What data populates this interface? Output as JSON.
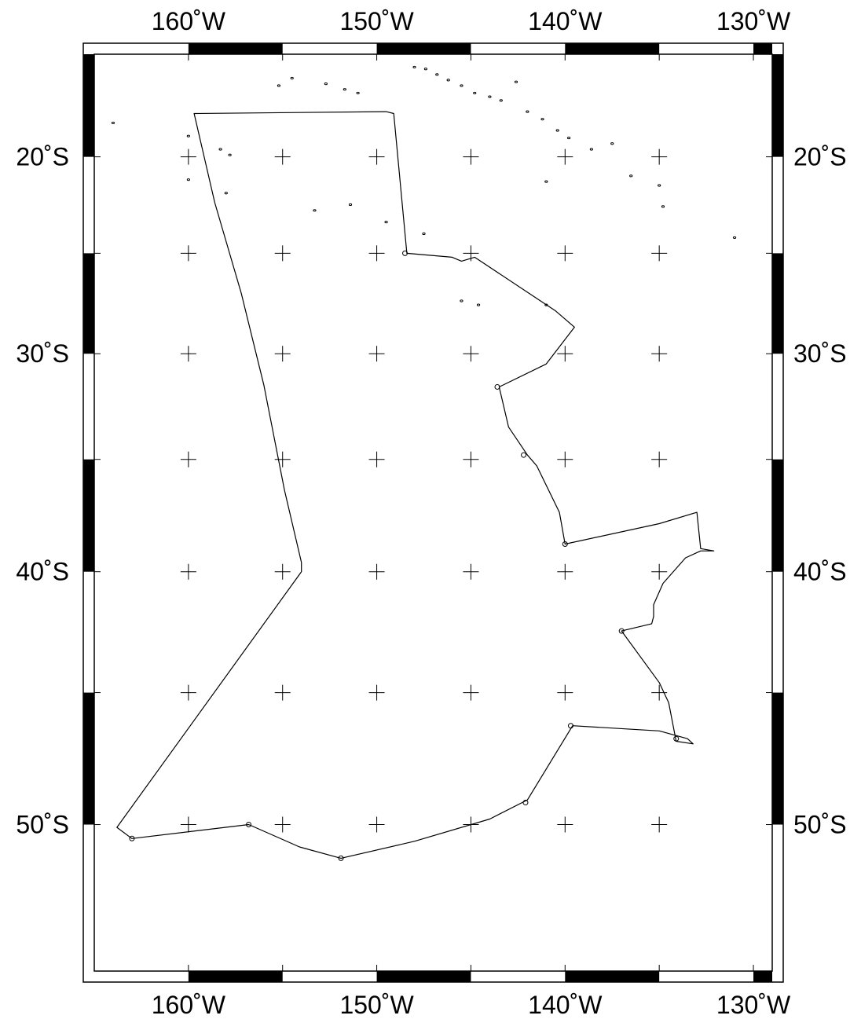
{
  "map": {
    "projection": "mercator",
    "lon_range": [
      -165,
      -129
    ],
    "lat_range": [
      -55,
      -14.5
    ],
    "gridline_style": "cross-ticks",
    "frame_style": "black-white checkered",
    "line_color": "#000000",
    "lon_labels": [
      {
        "lon": -160,
        "text": "160˚W"
      },
      {
        "lon": -150,
        "text": "150˚W"
      },
      {
        "lon": -140,
        "text": "140˚W"
      },
      {
        "lon": -130,
        "text": "130˚W"
      }
    ],
    "lat_labels": [
      {
        "lat": -20,
        "text": "20˚S"
      },
      {
        "lat": -30,
        "text": "30˚S"
      },
      {
        "lat": -40,
        "text": "40˚S"
      },
      {
        "lat": -50,
        "text": "50˚S"
      }
    ],
    "track": [
      [
        -149.5,
        -17.6
      ],
      [
        -149.1,
        -17.7
      ],
      [
        -148.4,
        -25.0
      ],
      [
        -146.0,
        -25.2
      ],
      [
        -145.5,
        -25.4
      ],
      [
        -144.8,
        -25.2
      ],
      [
        -140.5,
        -27.9
      ],
      [
        -139.5,
        -28.7
      ],
      [
        -141.0,
        -30.5
      ],
      [
        -143.5,
        -31.6
      ],
      [
        -143.0,
        -33.5
      ],
      [
        -142.0,
        -34.8
      ],
      [
        -141.5,
        -35.3
      ],
      [
        -140.3,
        -37.4
      ],
      [
        -140.0,
        -38.8
      ],
      [
        -135.0,
        -37.9
      ],
      [
        -133.0,
        -37.4
      ],
      [
        -132.8,
        -39.0
      ],
      [
        -132.1,
        -39.1
      ],
      [
        -132.8,
        -39.1
      ],
      [
        -133.6,
        -39.4
      ],
      [
        -134.8,
        -40.5
      ],
      [
        -135.3,
        -41.4
      ],
      [
        -135.3,
        -41.9
      ],
      [
        -135.4,
        -42.2
      ],
      [
        -137.0,
        -42.5
      ],
      [
        -135.0,
        -44.6
      ],
      [
        -134.5,
        -45.4
      ],
      [
        -134.1,
        -46.9
      ],
      [
        -133.2,
        -47.0
      ],
      [
        -133.5,
        -46.8
      ],
      [
        -135.0,
        -46.5
      ],
      [
        -139.6,
        -46.3
      ],
      [
        -142.0,
        -49.1
      ],
      [
        -144.0,
        -49.8
      ],
      [
        -148.0,
        -50.6
      ],
      [
        -151.9,
        -51.2
      ],
      [
        -154.1,
        -50.8
      ],
      [
        -156.8,
        -50.0
      ],
      [
        -163.0,
        -50.5
      ],
      [
        -163.8,
        -50.1
      ],
      [
        -154.0,
        -40.0
      ],
      [
        -154.0,
        -39.6
      ],
      [
        -154.9,
        -36.4
      ],
      [
        -156.0,
        -31.5
      ],
      [
        -157.2,
        -27.0
      ],
      [
        -158.6,
        -22.4
      ],
      [
        -159.7,
        -17.7
      ],
      [
        -149.5,
        -17.6
      ]
    ],
    "stations": [
      [
        -148.5,
        -25.0
      ],
      [
        -143.6,
        -31.6
      ],
      [
        -142.2,
        -34.8
      ],
      [
        -140.0,
        -38.8
      ],
      [
        -137.0,
        -42.5
      ],
      [
        -134.1,
        -46.8
      ],
      [
        -139.7,
        -46.3
      ],
      [
        -142.1,
        -49.2
      ],
      [
        -151.9,
        -51.2
      ],
      [
        -156.8,
        -50.0
      ],
      [
        -163.0,
        -50.5
      ]
    ],
    "islands": [
      [
        -148.0,
        -15.2
      ],
      [
        -147.4,
        -15.3
      ],
      [
        -146.8,
        -15.6
      ],
      [
        -146.2,
        -15.9
      ],
      [
        -145.5,
        -16.2
      ],
      [
        -144.8,
        -16.6
      ],
      [
        -144.0,
        -16.8
      ],
      [
        -143.4,
        -17.0
      ],
      [
        -142.6,
        -16.0
      ],
      [
        -142.0,
        -17.6
      ],
      [
        -141.2,
        -18.0
      ],
      [
        -140.4,
        -18.6
      ],
      [
        -139.8,
        -19.0
      ],
      [
        -138.6,
        -19.6
      ],
      [
        -137.5,
        -19.3
      ],
      [
        -136.5,
        -21.0
      ],
      [
        -135.0,
        -21.5
      ],
      [
        -141.0,
        -21.3
      ],
      [
        -134.8,
        -22.6
      ],
      [
        -151.7,
        -16.4
      ],
      [
        -151.0,
        -16.6
      ],
      [
        -152.7,
        -16.1
      ],
      [
        -154.5,
        -15.8
      ],
      [
        -155.2,
        -16.2
      ],
      [
        -160.0,
        -18.9
      ],
      [
        -158.3,
        -19.6
      ],
      [
        -157.8,
        -19.9
      ],
      [
        -160.0,
        -21.2
      ],
      [
        -158.0,
        -21.9
      ],
      [
        -147.5,
        -24.0
      ],
      [
        -145.5,
        -27.4
      ],
      [
        -144.6,
        -27.6
      ],
      [
        -141.0,
        -27.6
      ],
      [
        -153.3,
        -22.8
      ],
      [
        -151.4,
        -22.5
      ],
      [
        -149.5,
        -23.4
      ],
      [
        -131.0,
        -24.2
      ],
      [
        -164.0,
        -18.2
      ]
    ]
  }
}
